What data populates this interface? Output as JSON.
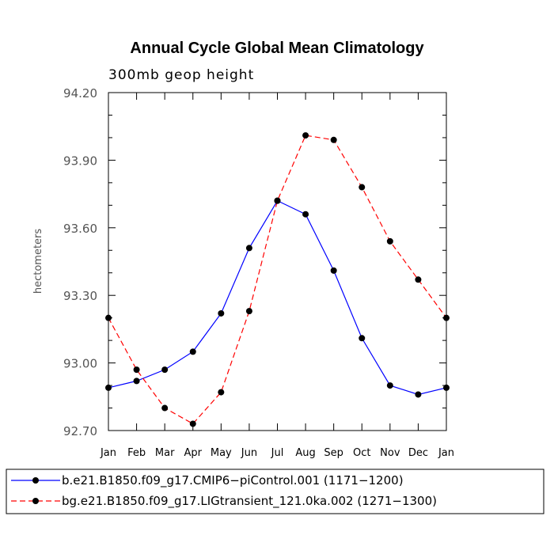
{
  "chart_data": {
    "type": "line",
    "title": "Annual Cycle Global Mean Climatology",
    "subtitle": "300mb geop height",
    "xlabel": "",
    "ylabel": "hectometers",
    "categories": [
      "Jan",
      "Feb",
      "Mar",
      "Apr",
      "May",
      "Jun",
      "Jul",
      "Aug",
      "Sep",
      "Oct",
      "Nov",
      "Dec",
      "Jan"
    ],
    "ylim": [
      92.7,
      94.2
    ],
    "yticks": [
      "92.70",
      "93.00",
      "93.30",
      "93.60",
      "93.90",
      "94.20"
    ],
    "series": [
      {
        "name": "b.e21.B1850.f09_g17.CMIP6−piControl.001 (1171−1200)",
        "color": "#0000ff",
        "dash": "solid",
        "values": [
          92.89,
          92.92,
          92.97,
          93.05,
          93.22,
          93.51,
          93.72,
          93.66,
          93.41,
          93.11,
          92.9,
          92.86,
          92.89
        ]
      },
      {
        "name": "bg.e21.B1850.f09_g17.LIGtransient_121.0ka.002 (1271−1300)",
        "color": "#ff0000",
        "dash": "dashed",
        "values": [
          93.2,
          92.97,
          92.8,
          92.73,
          92.87,
          93.23,
          93.72,
          94.01,
          93.99,
          93.78,
          93.54,
          93.37,
          93.2
        ]
      }
    ],
    "legend_position": "bottom"
  }
}
